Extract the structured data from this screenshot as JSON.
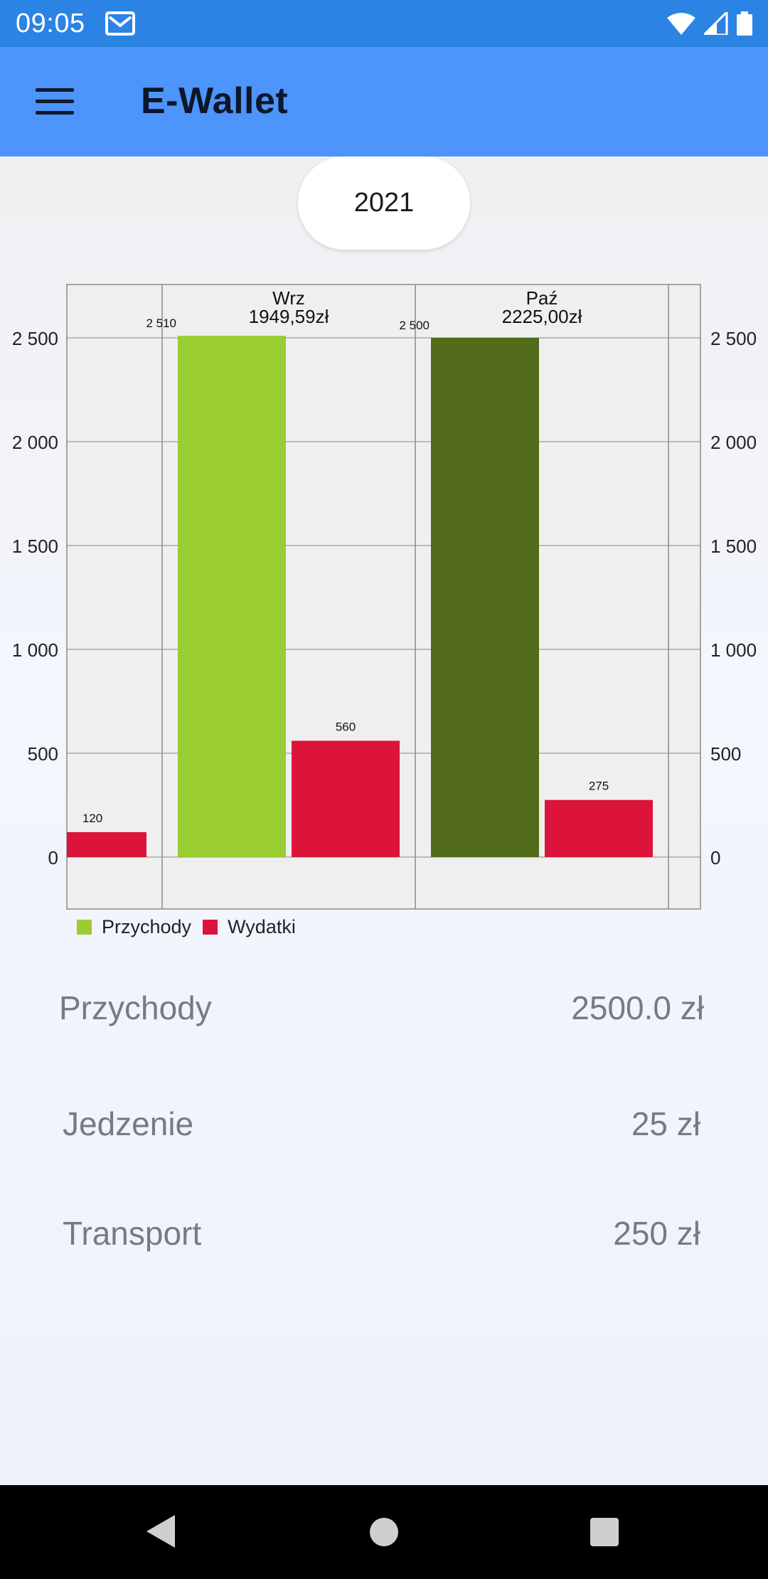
{
  "status_bar": {
    "time": "09:05",
    "icons": [
      "gmail-icon",
      "wifi-icon",
      "signal-icon",
      "battery-icon"
    ]
  },
  "app_bar": {
    "title": "E-Wallet",
    "menu_icon": "hamburger-menu-icon"
  },
  "year_selector": {
    "value": "2021"
  },
  "colors": {
    "income_light": "#9acd32",
    "income_dark": "#526b1a",
    "expense": "#dc143c",
    "app_bar": "#4d94fb",
    "status_bar": "#2b84e3"
  },
  "chart_data": {
    "type": "bar",
    "categories": [
      "",
      "Wrz",
      "Paź"
    ],
    "category_subtitles": [
      "",
      "1949,59zł",
      "2225,00zł"
    ],
    "series": [
      {
        "name": "Przychody",
        "values": [
          null,
          2510,
          2500
        ],
        "value_labels": [
          "",
          "2 510",
          "2 500"
        ]
      },
      {
        "name": "Wydatki",
        "values": [
          120,
          560,
          275
        ],
        "value_labels": [
          "120",
          "560",
          "275"
        ]
      }
    ],
    "ylim": [
      0,
      2500
    ],
    "y_ticks": [
      "0",
      "500",
      "1 000",
      "1 500",
      "2 000",
      "2 500"
    ],
    "y_tick_values": [
      0,
      500,
      1000,
      1500,
      2000,
      2500
    ],
    "grid": true,
    "legend_position": "bottom-left",
    "secondary_y_axis": true
  },
  "legend": [
    {
      "label": "Przychody",
      "color": "#9acd32"
    },
    {
      "label": "Wydatki",
      "color": "#dc143c"
    }
  ],
  "summary": [
    {
      "label": "Przychody",
      "value": "2500.0 zł"
    },
    {
      "label": "Jedzenie",
      "value": "25 zł"
    },
    {
      "label": "Transport",
      "value": "250 zł"
    }
  ],
  "nav_bar": {
    "icons": [
      "back-icon",
      "home-icon",
      "recents-icon"
    ]
  }
}
